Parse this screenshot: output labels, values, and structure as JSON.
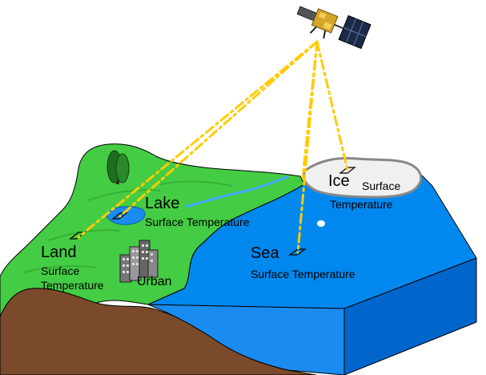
{
  "labels": {
    "land": {
      "name": "Land",
      "line1": "Surface",
      "line2": "Temperature"
    },
    "lake": {
      "name": "Lake",
      "line1": "Surface Temperature"
    },
    "urban": {
      "name": "Urban"
    },
    "sea": {
      "name": "Sea",
      "line1": "Surface Temperature"
    },
    "ice": {
      "name": "Ice",
      "line1": "Surface",
      "line2": "Temperature"
    }
  },
  "icons": [
    "satellite-icon",
    "tree-icon",
    "buildings-icon"
  ],
  "colors": {
    "land": "#44cc44",
    "land_dark": "#2e9e2e",
    "sea": "#0088ee",
    "sea_side": "#0066cc",
    "soil": "#7a4a2a",
    "ice": "#f0f0f0",
    "beam": "#ffcc00"
  }
}
